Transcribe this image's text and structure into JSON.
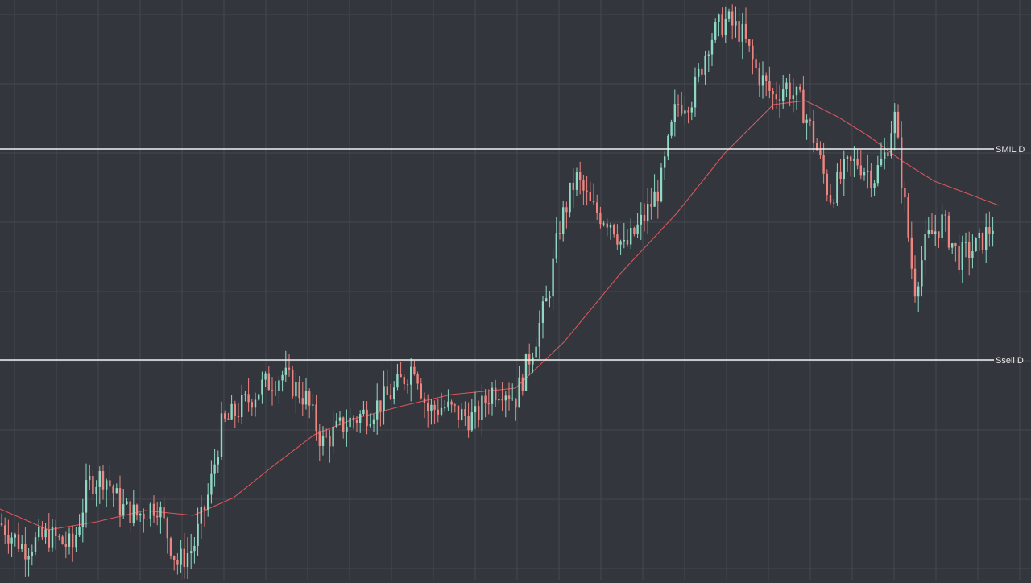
{
  "chart_data": {
    "type": "candlestick",
    "title": "",
    "xlabel": "",
    "ylabel": "",
    "ylim": [
      0,
      720
    ],
    "grid": true,
    "legend": "none",
    "colors": {
      "background": "#33363c",
      "grid": "#454950",
      "up": "#8fd8c4",
      "down": "#ee8580",
      "moving_average": "#d9555a",
      "level_line": "#f2f2f2",
      "level_label": "#e8e8e8"
    },
    "levels": [
      {
        "label": "SMIL D",
        "value": 535
      },
      {
        "label": "Ssell D",
        "value": 273
      }
    ],
    "moving_average": [
      [
        0,
        88
      ],
      [
        60,
        62
      ],
      [
        120,
        72
      ],
      [
        180,
        86
      ],
      [
        240,
        80
      ],
      [
        290,
        102
      ],
      [
        340,
        142
      ],
      [
        390,
        180
      ],
      [
        440,
        200
      ],
      [
        500,
        216
      ],
      [
        560,
        230
      ],
      [
        640,
        238
      ],
      [
        700,
        295
      ],
      [
        770,
        380
      ],
      [
        840,
        455
      ],
      [
        900,
        530
      ],
      [
        960,
        590
      ],
      [
        1000,
        595
      ],
      [
        1040,
        575
      ],
      [
        1080,
        550
      ],
      [
        1120,
        520
      ],
      [
        1160,
        495
      ],
      [
        1200,
        480
      ],
      [
        1240,
        465
      ]
    ],
    "series": [
      {
        "x": 2,
        "o": 90,
        "h": 100,
        "l": 60,
        "c": 70
      }
    ]
  }
}
